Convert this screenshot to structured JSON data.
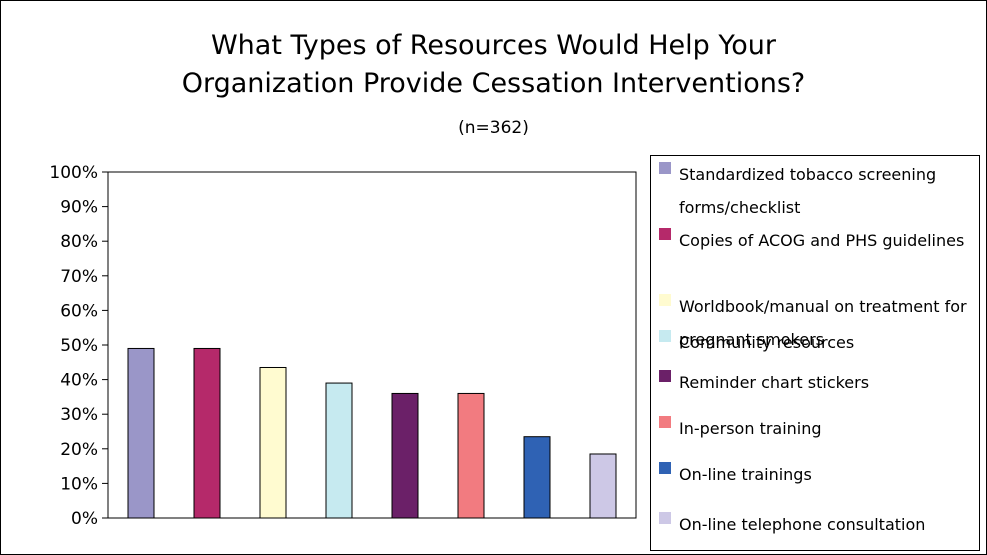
{
  "chart_data": {
    "type": "bar",
    "title": "What Types of Resources Would Help Your Organization Provide Cessation Interventions?",
    "title_lines": [
      "What Types of Resources Would Help Your",
      "Organization Provide Cessation Interventions?"
    ],
    "subtitle": "(n=362)",
    "categories": [
      "Standardized tobacco screening forms/checklist",
      "Copies of ACOG and PHS guidelines",
      "Worldbook/manual on treatment for pregnant smokers",
      "Community resources",
      "Reminder chart stickers",
      "In-person training",
      "On-line trainings",
      "On-line telephone consultation"
    ],
    "values": [
      49,
      49,
      43.5,
      39,
      36,
      36,
      23.5,
      18.5
    ],
    "colors": [
      "#9a96c8",
      "#b5296a",
      "#fffbd0",
      "#c6eaf0",
      "#6b2068",
      "#f27b80",
      "#2f62b4",
      "#cdc8e6"
    ],
    "yticks": [
      "0%",
      "10%",
      "20%",
      "30%",
      "40%",
      "50%",
      "60%",
      "70%",
      "80%",
      "90%",
      "100%"
    ],
    "ylim": [
      0,
      100
    ],
    "grid": false,
    "legend": "right",
    "legend_items": [
      "Standardized tobacco screening forms/checklist",
      "Copies of ACOG and PHS guidelines",
      "Worldbook/manual on treatment for pregnant smokers",
      "Community resources",
      "Reminder chart stickers",
      "In-person training",
      "On-line trainings",
      "On-line telephone consultation"
    ]
  }
}
